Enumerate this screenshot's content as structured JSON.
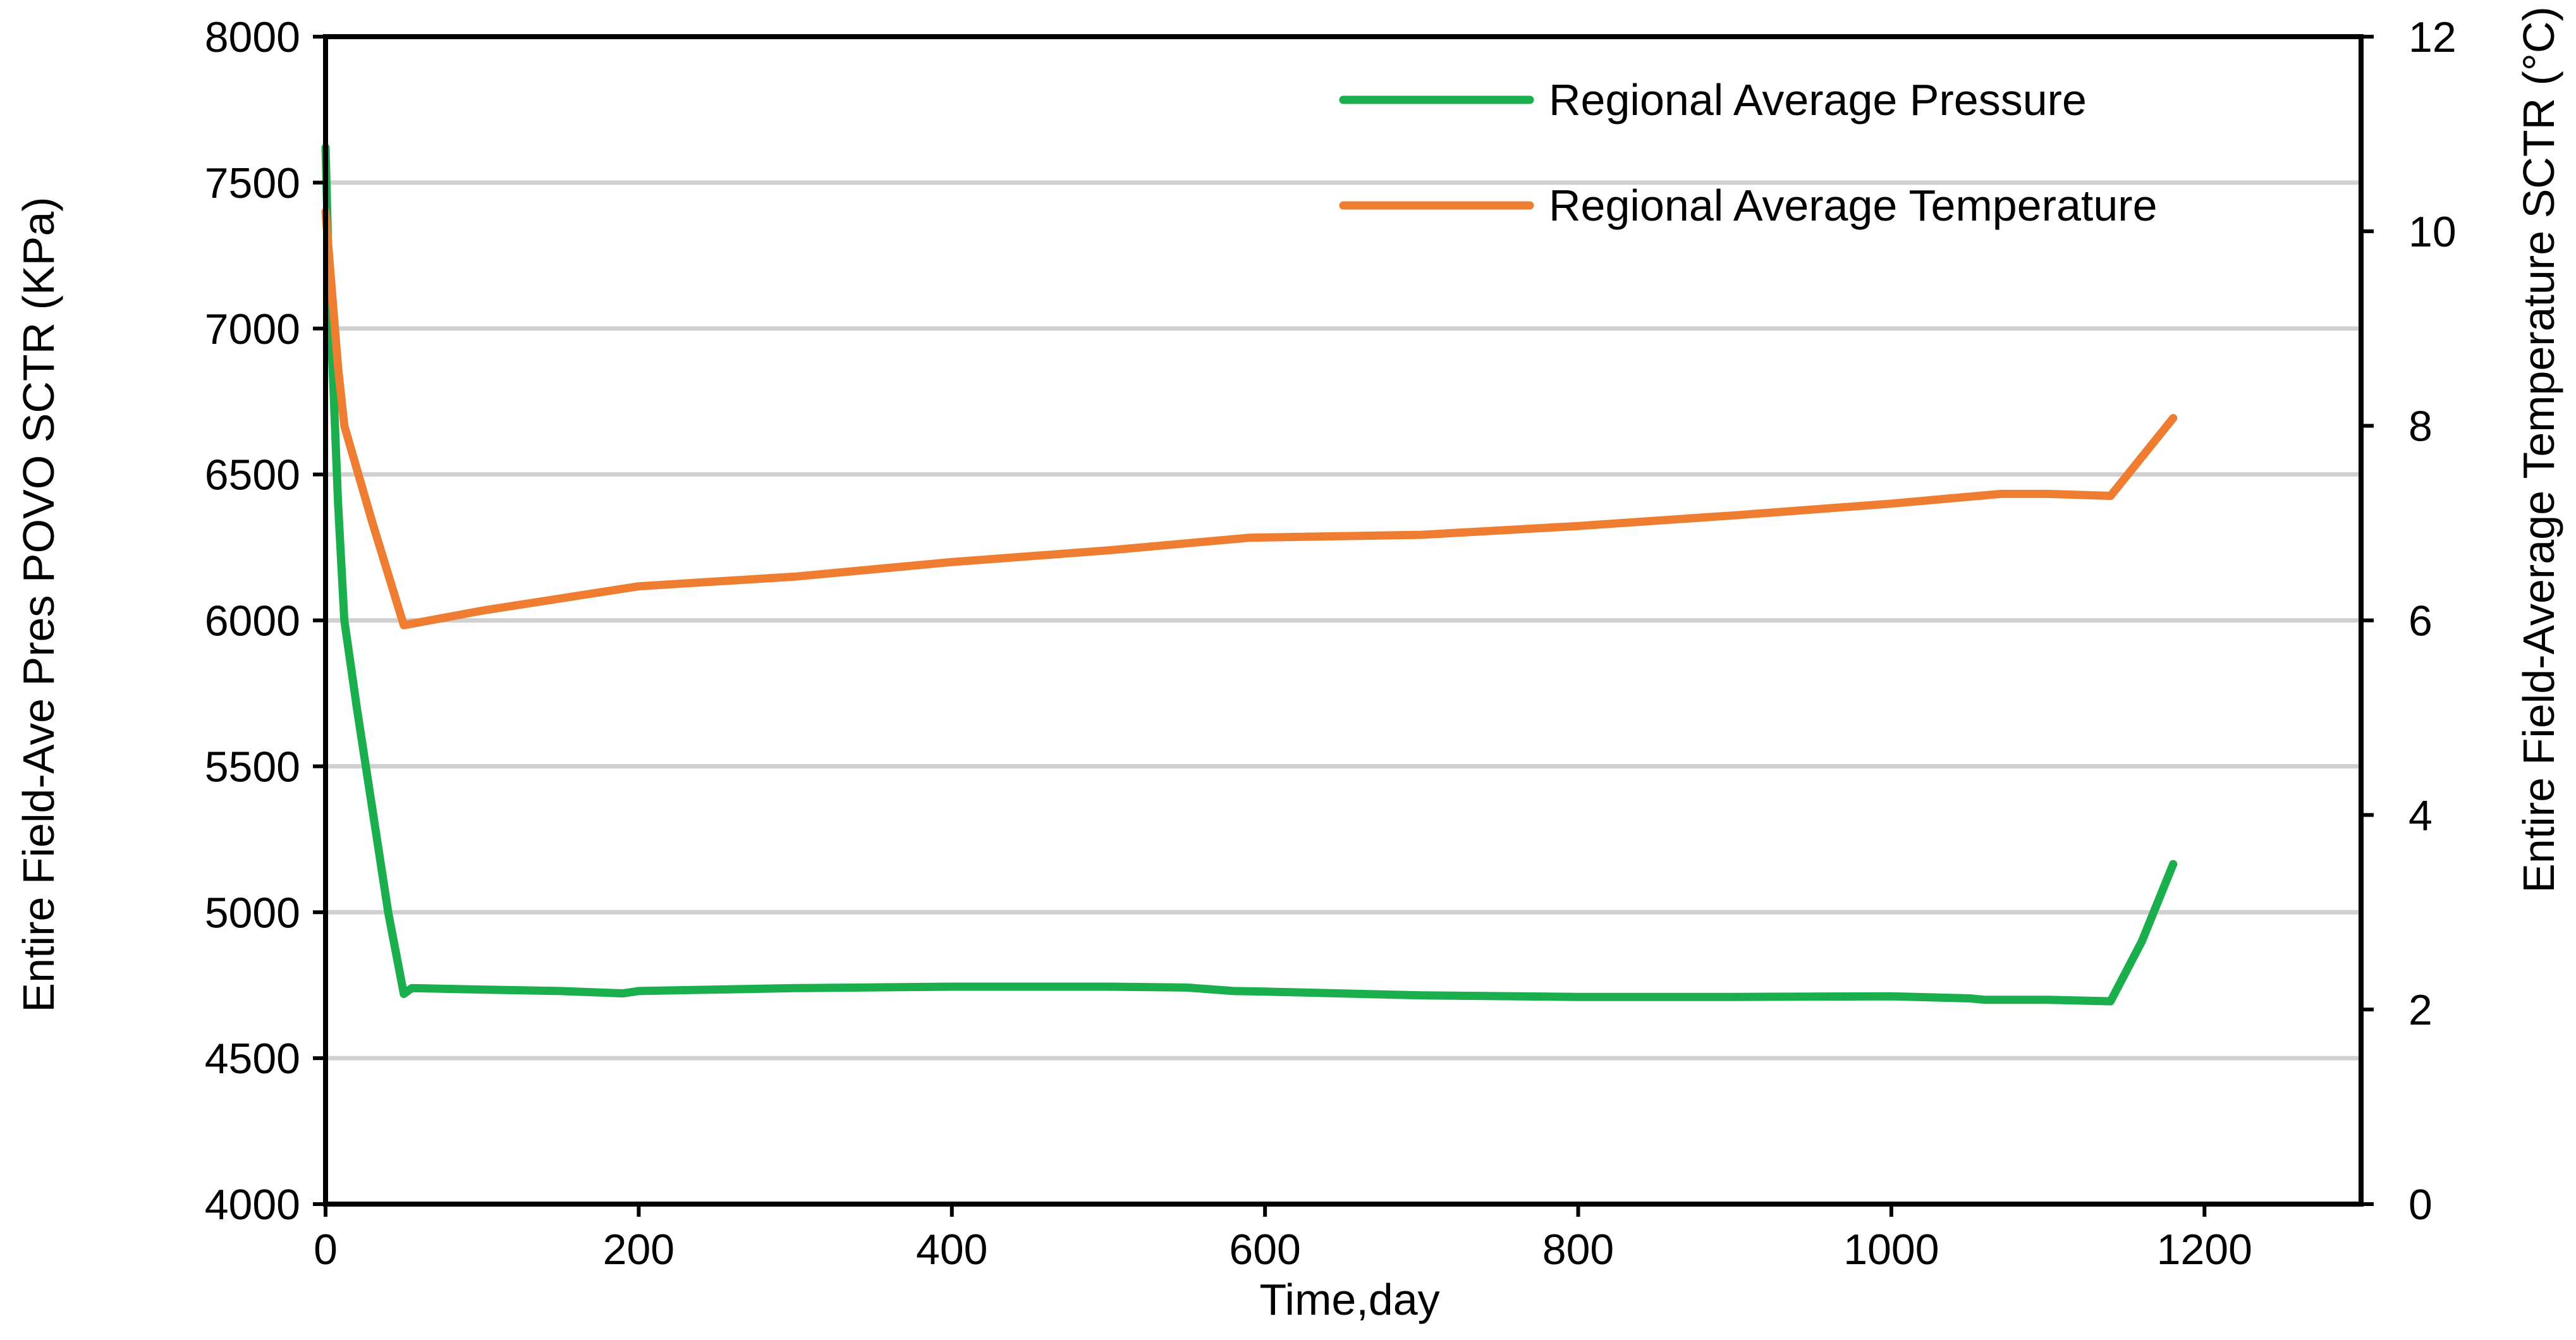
{
  "chart_data": {
    "type": "line",
    "xlabel": "Time,day",
    "ylabel_left": "Entire  Field-Ave Pres POVO SCTR (KPa)",
    "ylabel_right": "Entire  Field-Average Temperature SCTR (°C)",
    "xlim": [
      0,
      1300
    ],
    "ylim_left": [
      4000,
      8000
    ],
    "ylim_right": [
      0,
      12
    ],
    "x_ticks": [
      "0",
      "200",
      "400",
      "600",
      "800",
      "1000",
      "1200"
    ],
    "y_left_ticks": [
      "4000",
      "4500",
      "5000",
      "5500",
      "6000",
      "6500",
      "7000",
      "7500",
      "8000"
    ],
    "y_right_ticks": [
      "0",
      "2",
      "4",
      "6",
      "8",
      "10",
      "12"
    ],
    "grid": "horizontal",
    "legend_position": "top-right",
    "series": [
      {
        "name": "Regional Average Pressure",
        "axis": "left",
        "color": "#1aaf4c",
        "points": [
          [
            0,
            7620
          ],
          [
            2,
            7200
          ],
          [
            5,
            6800
          ],
          [
            8,
            6400
          ],
          [
            12,
            6000
          ],
          [
            20,
            5700
          ],
          [
            30,
            5350
          ],
          [
            40,
            5000
          ],
          [
            50,
            4720
          ],
          [
            55,
            4740
          ],
          [
            100,
            4735
          ],
          [
            150,
            4730
          ],
          [
            190,
            4722
          ],
          [
            200,
            4730
          ],
          [
            300,
            4740
          ],
          [
            400,
            4745
          ],
          [
            500,
            4745
          ],
          [
            550,
            4742
          ],
          [
            580,
            4730
          ],
          [
            600,
            4728
          ],
          [
            700,
            4715
          ],
          [
            800,
            4710
          ],
          [
            900,
            4710
          ],
          [
            1000,
            4712
          ],
          [
            1050,
            4705
          ],
          [
            1060,
            4700
          ],
          [
            1100,
            4700
          ],
          [
            1140,
            4695
          ],
          [
            1160,
            4900
          ],
          [
            1180,
            5165
          ]
        ]
      },
      {
        "name": "Regional Average Temperature",
        "axis": "right",
        "color": "#ee7d31",
        "points": [
          [
            0,
            10.2
          ],
          [
            3,
            9.6
          ],
          [
            8,
            8.6
          ],
          [
            12,
            8.0
          ],
          [
            30,
            7.0
          ],
          [
            50,
            5.95
          ],
          [
            100,
            6.1
          ],
          [
            200,
            6.35
          ],
          [
            300,
            6.45
          ],
          [
            400,
            6.6
          ],
          [
            500,
            6.72
          ],
          [
            590,
            6.85
          ],
          [
            700,
            6.88
          ],
          [
            800,
            6.97
          ],
          [
            900,
            7.08
          ],
          [
            1000,
            7.2
          ],
          [
            1070,
            7.3
          ],
          [
            1100,
            7.3
          ],
          [
            1140,
            7.28
          ],
          [
            1180,
            8.08
          ]
        ]
      }
    ]
  }
}
